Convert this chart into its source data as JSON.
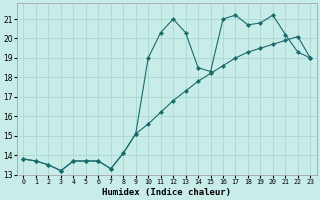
{
  "xlabel": "Humidex (Indice chaleur)",
  "bg_color": "#c8ece8",
  "grid_color": "#aad8d4",
  "line_color": "#1a6b6b",
  "xlim": [
    -0.5,
    23.5
  ],
  "ylim": [
    13.0,
    21.8
  ],
  "yticks": [
    13,
    14,
    15,
    16,
    17,
    18,
    19,
    20,
    21
  ],
  "xticks": [
    0,
    1,
    2,
    3,
    4,
    5,
    6,
    7,
    8,
    9,
    10,
    11,
    12,
    13,
    14,
    15,
    16,
    17,
    18,
    19,
    20,
    21,
    22,
    23
  ],
  "line1_x": [
    0,
    1,
    2,
    3,
    4,
    5,
    6,
    7,
    8,
    9,
    10,
    11,
    12,
    13,
    14,
    15,
    16,
    17,
    18,
    19,
    20,
    21,
    22,
    23
  ],
  "line1_y": [
    13.8,
    13.7,
    13.5,
    13.2,
    13.7,
    13.7,
    13.7,
    13.3,
    14.1,
    15.1,
    19.0,
    20.3,
    21.0,
    20.3,
    18.5,
    18.3,
    21.0,
    21.2,
    20.7,
    20.8,
    21.2,
    20.2,
    19.3,
    19.0
  ],
  "line2_x": [
    0,
    1,
    2,
    3,
    4,
    5,
    6,
    7,
    8,
    9,
    10,
    11,
    12,
    13,
    14,
    15,
    16,
    17,
    18,
    19,
    20,
    21,
    22,
    23
  ],
  "line2_y": [
    13.8,
    13.7,
    13.5,
    13.2,
    13.7,
    13.7,
    13.7,
    13.3,
    14.1,
    15.1,
    15.6,
    16.2,
    16.8,
    17.3,
    17.8,
    18.2,
    18.6,
    19.0,
    19.3,
    19.5,
    19.7,
    19.9,
    20.1,
    19.0
  ]
}
